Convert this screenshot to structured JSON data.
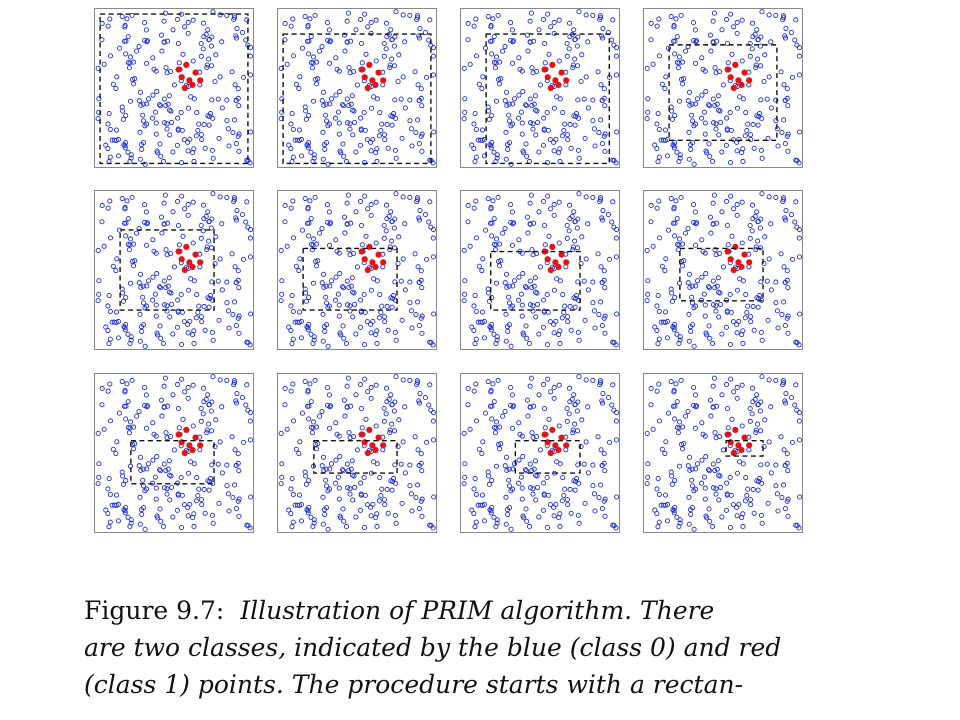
{
  "figure": {
    "label": "Figure 9.7:",
    "caption_lines": [
      "Illustration of PRIM algorithm.  There",
      "are two classes, indicated by the blue (class 0) and red",
      "(class 1) points.  The procedure starts with a rectan-"
    ]
  },
  "colors": {
    "class0": "#1f2fd6",
    "class1": "#e41414",
    "box": "#111111",
    "frame": "#888888"
  },
  "chart_data": {
    "type": "scatter",
    "classes": [
      {
        "class": 0,
        "marker": "open-circle",
        "color": "#1f2fd6"
      },
      {
        "class": 1,
        "marker": "filled-circle",
        "color": "#e41414"
      }
    ],
    "xlim": [
      0,
      1
    ],
    "ylim": [
      0,
      1
    ],
    "n_panels": 12,
    "red_points": [
      [
        0.53,
        0.62
      ],
      [
        0.58,
        0.65
      ],
      [
        0.64,
        0.6
      ],
      [
        0.55,
        0.57
      ],
      [
        0.6,
        0.55
      ],
      [
        0.67,
        0.55
      ],
      [
        0.62,
        0.52
      ],
      [
        0.57,
        0.5
      ]
    ],
    "prim_boxes": [
      {
        "x": [
          0.02,
          0.98
        ],
        "y": [
          0.01,
          0.98
        ]
      },
      {
        "x": [
          0.02,
          0.98
        ],
        "y": [
          0.01,
          0.85
        ]
      },
      {
        "x": [
          0.15,
          0.95
        ],
        "y": [
          0.01,
          0.85
        ]
      },
      {
        "x": [
          0.15,
          0.85
        ],
        "y": [
          0.16,
          0.78
        ]
      },
      {
        "x": [
          0.15,
          0.76
        ],
        "y": [
          0.24,
          0.76
        ]
      },
      {
        "x": [
          0.15,
          0.76
        ],
        "y": [
          0.24,
          0.64
        ]
      },
      {
        "x": [
          0.18,
          0.76
        ],
        "y": [
          0.24,
          0.62
        ]
      },
      {
        "x": [
          0.22,
          0.76
        ],
        "y": [
          0.3,
          0.64
        ]
      },
      {
        "x": [
          0.22,
          0.76
        ],
        "y": [
          0.3,
          0.58
        ]
      },
      {
        "x": [
          0.22,
          0.76
        ],
        "y": [
          0.37,
          0.58
        ]
      },
      {
        "x": [
          0.34,
          0.76
        ],
        "y": [
          0.37,
          0.58
        ]
      },
      {
        "x": [
          0.52,
          0.76
        ],
        "y": [
          0.48,
          0.58
        ]
      }
    ]
  }
}
